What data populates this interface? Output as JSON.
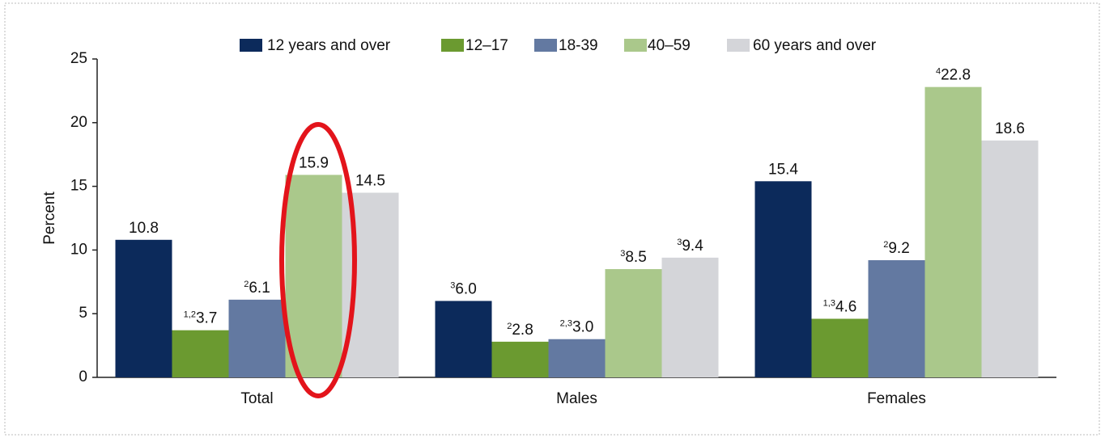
{
  "chart_data": {
    "type": "bar",
    "y_label": "Percent",
    "categories": [
      "Total",
      "Males",
      "Females"
    ],
    "series": [
      {
        "name": "12 years and over",
        "color": "#0c2a5b",
        "values": [
          10.8,
          6.0,
          15.4
        ],
        "value_labels": [
          "10.8",
          "6.0",
          "15.4"
        ],
        "footnotes": [
          null,
          "3",
          null
        ]
      },
      {
        "name": "12–17",
        "color": "#6b9a30",
        "values": [
          3.7,
          2.8,
          4.6
        ],
        "value_labels": [
          "3.7",
          "2.8",
          "4.6"
        ],
        "footnotes": [
          "1,2",
          "2",
          "1,3"
        ]
      },
      {
        "name": "18-39",
        "color": "#6379a1",
        "values": [
          6.1,
          3.0,
          9.2
        ],
        "value_labels": [
          "6.1",
          "3.0",
          "9.2"
        ],
        "footnotes": [
          "2",
          "2,3",
          "2"
        ]
      },
      {
        "name": "40–59",
        "color": "#aac88b",
        "values": [
          15.9,
          8.5,
          22.8
        ],
        "value_labels": [
          "15.9",
          "8.5",
          "22.8"
        ],
        "footnotes": [
          null,
          "3",
          "4"
        ]
      },
      {
        "name": "60 years and over",
        "color": "#d4d5d9",
        "values": [
          14.5,
          9.4,
          18.6
        ],
        "value_labels": [
          "14.5",
          "9.4",
          "18.6"
        ],
        "footnotes": [
          null,
          "3",
          null
        ]
      }
    ],
    "ylim": [
      0,
      25
    ],
    "yticks": [
      0,
      5,
      10,
      15,
      20,
      25
    ],
    "grid": false,
    "legend": "top"
  }
}
